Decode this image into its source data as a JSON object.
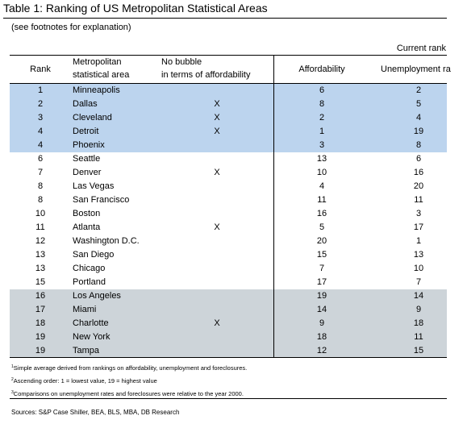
{
  "title": "Table 1: Ranking of US Metropolitan Statistical Areas",
  "subtitle": "(see footnotes for explanation)",
  "current_rank": "Current rank",
  "headers": {
    "rank": "Rank",
    "area_line1": "Metropolitan",
    "area_line2": "statistical area",
    "nobubble_line1": "No bubble",
    "nobubble_line2": "in terms of affordability",
    "affordability": "Affordability",
    "unemployment": "Unemployment ra"
  },
  "rows": [
    {
      "rank": "1",
      "city": "Minneapolis",
      "no_bubble": "",
      "affordability": "6",
      "unemployment": "2",
      "group": "blue"
    },
    {
      "rank": "2",
      "city": "Dallas",
      "no_bubble": "X",
      "affordability": "8",
      "unemployment": "5",
      "group": "blue"
    },
    {
      "rank": "3",
      "city": "Cleveland",
      "no_bubble": "X",
      "affordability": "2",
      "unemployment": "4",
      "group": "blue"
    },
    {
      "rank": "4",
      "city": "Detroit",
      "no_bubble": "X",
      "affordability": "1",
      "unemployment": "19",
      "group": "blue"
    },
    {
      "rank": "4",
      "city": "Phoenix",
      "no_bubble": "",
      "affordability": "3",
      "unemployment": "8",
      "group": "blue"
    },
    {
      "rank": "6",
      "city": "Seattle",
      "no_bubble": "",
      "affordability": "13",
      "unemployment": "6",
      "group": "white"
    },
    {
      "rank": "7",
      "city": "Denver",
      "no_bubble": "X",
      "affordability": "10",
      "unemployment": "16",
      "group": "white"
    },
    {
      "rank": "8",
      "city": "Las Vegas",
      "no_bubble": "",
      "affordability": "4",
      "unemployment": "20",
      "group": "white"
    },
    {
      "rank": "8",
      "city": "San Francisco",
      "no_bubble": "",
      "affordability": "11",
      "unemployment": "11",
      "group": "white"
    },
    {
      "rank": "10",
      "city": "Boston",
      "no_bubble": "",
      "affordability": "16",
      "unemployment": "3",
      "group": "white"
    },
    {
      "rank": "11",
      "city": "Atlanta",
      "no_bubble": "X",
      "affordability": "5",
      "unemployment": "17",
      "group": "white"
    },
    {
      "rank": "12",
      "city": "Washington D.C.",
      "no_bubble": "",
      "affordability": "20",
      "unemployment": "1",
      "group": "white"
    },
    {
      "rank": "13",
      "city": "San Diego",
      "no_bubble": "",
      "affordability": "15",
      "unemployment": "13",
      "group": "white"
    },
    {
      "rank": "13",
      "city": "Chicago",
      "no_bubble": "",
      "affordability": "7",
      "unemployment": "10",
      "group": "white"
    },
    {
      "rank": "15",
      "city": "Portland",
      "no_bubble": "",
      "affordability": "17",
      "unemployment": "7",
      "group": "white"
    },
    {
      "rank": "16",
      "city": "Los Angeles",
      "no_bubble": "",
      "affordability": "19",
      "unemployment": "14",
      "group": "grey"
    },
    {
      "rank": "17",
      "city": "Miami",
      "no_bubble": "",
      "affordability": "14",
      "unemployment": "9",
      "group": "grey"
    },
    {
      "rank": "18",
      "city": "Charlotte",
      "no_bubble": "X",
      "affordability": "9",
      "unemployment": "18",
      "group": "grey"
    },
    {
      "rank": "19",
      "city": "New York",
      "no_bubble": "",
      "affordability": "18",
      "unemployment": "11",
      "group": "grey"
    },
    {
      "rank": "19",
      "city": "Tampa",
      "no_bubble": "",
      "affordability": "12",
      "unemployment": "15",
      "group": "grey"
    }
  ],
  "footnotes": [
    {
      "mark": "1",
      "text": "Simple average derived from rankings on affordability, unemployment and foreclosures."
    },
    {
      "mark": "2",
      "text": "Ascending order: 1 = lowest value, 19 = highest value"
    },
    {
      "mark": "3",
      "text": "Comparisons on unemployment rates and foreclosures were relative to the year 2000."
    }
  ],
  "source": "Sources: S&P Case Shiller, BEA, BLS, MBA, DB Research",
  "colors": {
    "blue_band": "#bcd4ee",
    "grey_band": "#cdd4d9"
  }
}
